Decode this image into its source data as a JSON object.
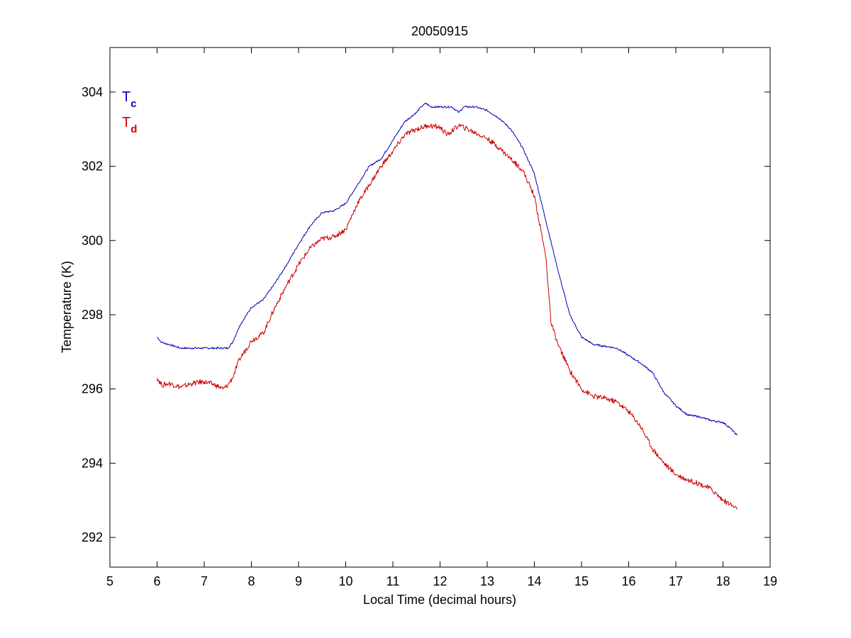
{
  "chart_data": {
    "type": "line",
    "title": "20050915",
    "xlabel": "Local Time (decimal hours)",
    "ylabel": "Temperature (K)",
    "xlim": [
      5,
      19
    ],
    "ylim": [
      291.2,
      305.2
    ],
    "xticks": [
      "5",
      "6",
      "7",
      "8",
      "9",
      "10",
      "11",
      "12",
      "13",
      "14",
      "15",
      "16",
      "17",
      "18",
      "19"
    ],
    "yticks": [
      "292",
      "294",
      "296",
      "298",
      "300",
      "302",
      "304"
    ],
    "grid": false,
    "legend_position": "top-left",
    "series": [
      {
        "name": "T",
        "subscript": "c",
        "color": "#0000b4",
        "x": [
          6.0,
          6.1,
          6.25,
          6.5,
          6.75,
          7.0,
          7.25,
          7.5,
          7.6,
          7.75,
          8.0,
          8.25,
          8.5,
          8.75,
          9.0,
          9.25,
          9.5,
          9.75,
          10.0,
          10.25,
          10.5,
          10.75,
          11.0,
          11.25,
          11.5,
          11.6,
          11.7,
          11.8,
          12.0,
          12.25,
          12.4,
          12.5,
          12.75,
          13.0,
          13.25,
          13.5,
          13.75,
          14.0,
          14.25,
          14.5,
          14.75,
          15.0,
          15.25,
          15.5,
          15.75,
          16.0,
          16.25,
          16.5,
          16.75,
          17.0,
          17.25,
          17.5,
          17.75,
          18.0,
          18.15,
          18.3
        ],
        "y": [
          297.4,
          297.25,
          297.2,
          297.1,
          297.1,
          297.1,
          297.1,
          297.1,
          297.25,
          297.7,
          298.2,
          298.4,
          298.85,
          299.35,
          299.9,
          300.4,
          300.75,
          300.8,
          301.0,
          301.5,
          302.0,
          302.2,
          302.7,
          303.2,
          303.45,
          303.6,
          303.7,
          303.6,
          303.6,
          303.6,
          303.45,
          303.6,
          303.6,
          303.5,
          303.3,
          303.0,
          302.5,
          301.8,
          300.5,
          299.2,
          298.0,
          297.4,
          297.2,
          297.15,
          297.1,
          296.9,
          296.7,
          296.45,
          295.9,
          295.55,
          295.3,
          295.25,
          295.15,
          295.1,
          294.95,
          294.75
        ]
      },
      {
        "name": "T",
        "subscript": "d",
        "color": "#cc0000",
        "x": [
          6.0,
          6.1,
          6.25,
          6.5,
          6.75,
          7.0,
          7.25,
          7.4,
          7.5,
          7.6,
          7.75,
          8.0,
          8.25,
          8.5,
          8.75,
          9.0,
          9.25,
          9.5,
          9.75,
          10.0,
          10.25,
          10.5,
          10.75,
          11.0,
          11.25,
          11.5,
          11.75,
          12.0,
          12.15,
          12.25,
          12.4,
          12.5,
          12.75,
          13.0,
          13.25,
          13.5,
          13.75,
          14.0,
          14.15,
          14.25,
          14.35,
          14.5,
          14.75,
          15.0,
          15.25,
          15.5,
          15.75,
          16.0,
          16.25,
          16.5,
          16.75,
          17.0,
          17.25,
          17.5,
          17.75,
          18.0,
          18.15,
          18.3
        ],
        "y": [
          296.3,
          296.1,
          296.15,
          296.05,
          296.15,
          296.2,
          296.1,
          296.0,
          296.1,
          296.3,
          296.8,
          297.3,
          297.5,
          298.2,
          298.8,
          299.35,
          299.8,
          300.05,
          300.1,
          300.3,
          301.0,
          301.5,
          302.0,
          302.4,
          302.85,
          303.0,
          303.1,
          303.05,
          302.85,
          302.95,
          303.1,
          303.05,
          302.9,
          302.75,
          302.5,
          302.2,
          301.9,
          301.2,
          300.2,
          299.5,
          297.8,
          297.2,
          296.5,
          296.0,
          295.8,
          295.75,
          295.65,
          295.4,
          295.0,
          294.4,
          294.0,
          293.7,
          293.55,
          293.45,
          293.3,
          293.0,
          292.9,
          292.75
        ]
      }
    ]
  }
}
